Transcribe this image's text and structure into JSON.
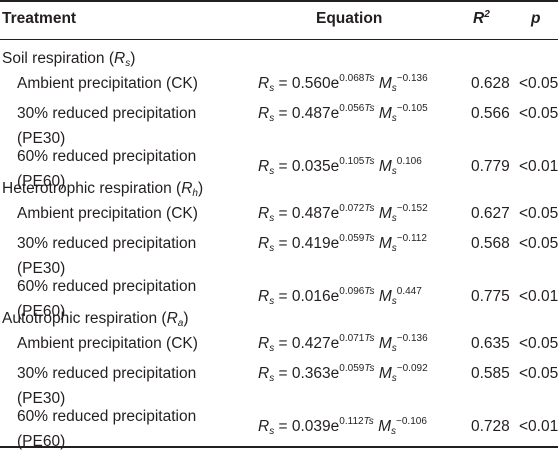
{
  "header": {
    "treatment": "Treatment",
    "equation": "Equation",
    "r2_base": "R",
    "r2_sup": "2",
    "p": "p"
  },
  "groups": [
    {
      "label_prefix": "Soil respiration (",
      "label_var": "R",
      "label_sub": "s",
      "label_suffix": ")",
      "rows": [
        {
          "treatment": "Ambient precipitation (CK)",
          "coef": "0.560",
          "exp_coef": "0.068",
          "exp_m": "−0.136",
          "r2": "0.628",
          "p": "<0.05"
        },
        {
          "treatment": "30% reduced precipitation (PE30)",
          "coef": "0.487",
          "exp_coef": "0.056",
          "exp_m": "−0.105",
          "r2": "0.566",
          "p": "<0.05"
        },
        {
          "treatment": "60% reduced precipitation (PE60)",
          "coef": "0.035",
          "exp_coef": "0.105",
          "exp_m": "0.106",
          "r2": "0.779",
          "p": "<0.01"
        }
      ]
    },
    {
      "label_prefix": "Heterotrophic respiration (",
      "label_var": "R",
      "label_sub": "h",
      "label_suffix": ")",
      "rows": [
        {
          "treatment": "Ambient precipitation (CK)",
          "coef": "0.487",
          "exp_coef": "0.072",
          "exp_m": "−0.152",
          "r2": "0.627",
          "p": "<0.05"
        },
        {
          "treatment": "30% reduced precipitation (PE30)",
          "coef": "0.419",
          "exp_coef": "0.059",
          "exp_m": "−0.112",
          "r2": "0.568",
          "p": "<0.05"
        },
        {
          "treatment": "60% reduced precipitation (PE60)",
          "coef": "0.016",
          "exp_coef": "0.096",
          "exp_m": "0.447",
          "r2": "0.775",
          "p": "<0.01"
        }
      ]
    },
    {
      "label_prefix": "Autotrophic respiration (",
      "label_var": "R",
      "label_sub": "a",
      "label_suffix": ")",
      "rows": [
        {
          "treatment": "Ambient precipitation (CK)",
          "coef": "0.427",
          "exp_coef": "0.071",
          "exp_m": "−0.136",
          "r2": "0.635",
          "p": "<0.05"
        },
        {
          "treatment": "30% reduced precipitation (PE30)",
          "coef": "0.363",
          "exp_coef": "0.059",
          "exp_m": "−0.092",
          "r2": "0.585",
          "p": "<0.05"
        },
        {
          "treatment": "60% reduced precipitation (PE60)",
          "coef": "0.039",
          "exp_coef": "0.112",
          "exp_m": "−0.106",
          "r2": "0.728",
          "p": "<0.01"
        }
      ]
    }
  ],
  "equation_parts": {
    "lhs_var": "R",
    "lhs_sub": "s",
    "equals": " = ",
    "base": "e",
    "ts_var": "Ts",
    "m_var": "M",
    "m_sub": "s"
  }
}
